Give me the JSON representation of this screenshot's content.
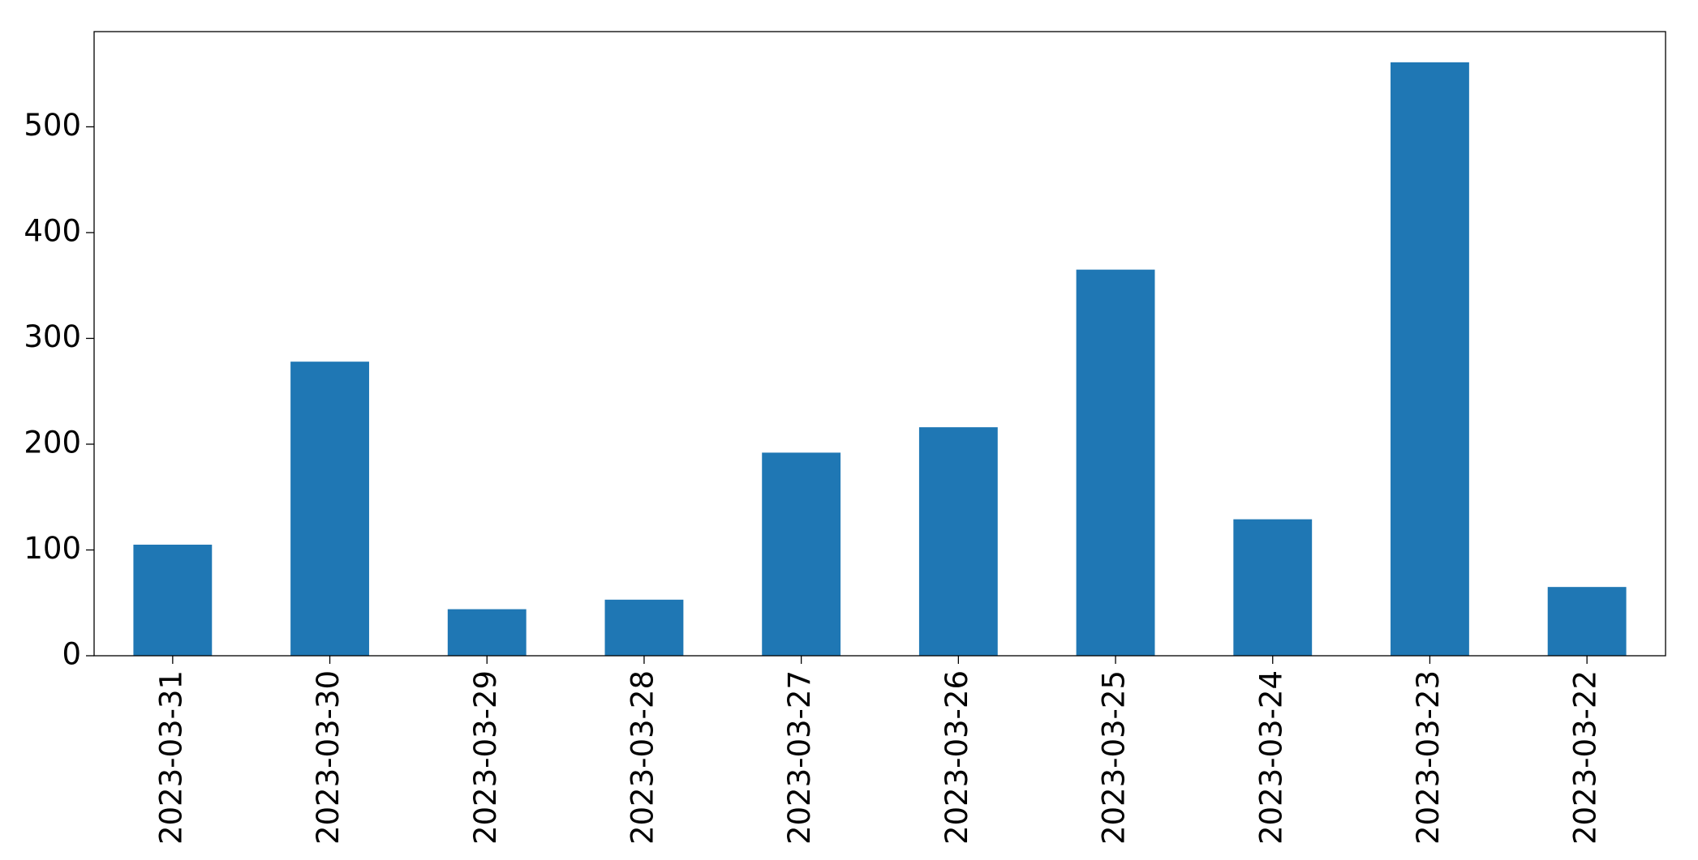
{
  "chart_data": {
    "type": "bar",
    "categories": [
      "2023-03-31",
      "2023-03-30",
      "2023-03-29",
      "2023-03-28",
      "2023-03-27",
      "2023-03-26",
      "2023-03-25",
      "2023-03-24",
      "2023-03-23",
      "2023-03-22"
    ],
    "values": [
      105,
      278,
      44,
      53,
      192,
      216,
      365,
      129,
      561,
      65
    ],
    "color": "#1f77b4",
    "ylim": [
      0,
      590
    ],
    "yticks": [
      0,
      100,
      200,
      300,
      400,
      500
    ],
    "grid": false
  }
}
